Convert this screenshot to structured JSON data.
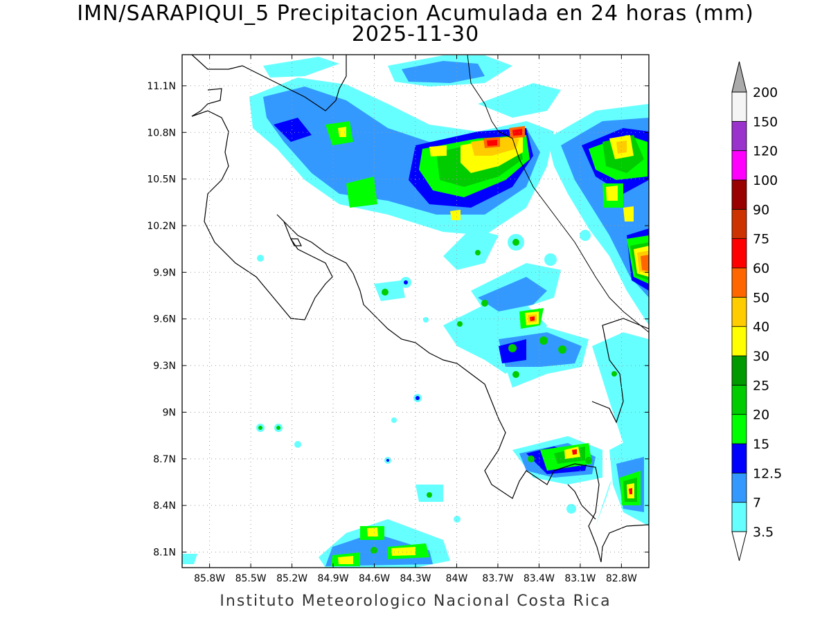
{
  "title": {
    "line1": "IMN/SARAPIQUI_5 Precipitacion Acumulada en 24 horas (mm)",
    "line2": "2025-11-30"
  },
  "map": {
    "lon_range": [
      -86.0,
      -82.6
    ],
    "lat_range": [
      8.0,
      11.3
    ],
    "x_ticks": [
      {
        "lon": -85.8,
        "label": "85.8W"
      },
      {
        "lon": -85.5,
        "label": "85.5W"
      },
      {
        "lon": -85.2,
        "label": "85.2W"
      },
      {
        "lon": -84.9,
        "label": "84.9W"
      },
      {
        "lon": -84.6,
        "label": "84.6W"
      },
      {
        "lon": -84.3,
        "label": "84.3W"
      },
      {
        "lon": -84.0,
        "label": "84W"
      },
      {
        "lon": -83.7,
        "label": "83.7W"
      },
      {
        "lon": -83.4,
        "label": "83.4W"
      },
      {
        "lon": -83.1,
        "label": "83.1W"
      },
      {
        "lon": -82.8,
        "label": "82.8W"
      }
    ],
    "y_ticks": [
      {
        "lat": 11.1,
        "label": "11.1N"
      },
      {
        "lat": 10.8,
        "label": "10.8N"
      },
      {
        "lat": 10.5,
        "label": "10.5N"
      },
      {
        "lat": 10.2,
        "label": "10.2N"
      },
      {
        "lat": 9.9,
        "label": "9.9N"
      },
      {
        "lat": 9.6,
        "label": "9.6N"
      },
      {
        "lat": 9.3,
        "label": "9.3N"
      },
      {
        "lat": 9.0,
        "label": "9N"
      },
      {
        "lat": 8.7,
        "label": "8.7N"
      },
      {
        "lat": 8.4,
        "label": "8.4N"
      },
      {
        "lat": 8.1,
        "label": "8.1N"
      }
    ],
    "grid": true
  },
  "legend": {
    "levels": [
      {
        "label": "3.5",
        "color": "#66ffff"
      },
      {
        "label": "7",
        "color": "#3399ff"
      },
      {
        "label": "12.5",
        "color": "#0000ff"
      },
      {
        "label": "15",
        "color": "#00ff00"
      },
      {
        "label": "20",
        "color": "#00cc00"
      },
      {
        "label": "25",
        "color": "#009900"
      },
      {
        "label": "30",
        "color": "#ffff00"
      },
      {
        "label": "40",
        "color": "#ffcc00"
      },
      {
        "label": "50",
        "color": "#ff6600"
      },
      {
        "label": "60",
        "color": "#ff0000"
      },
      {
        "label": "75",
        "color": "#cc3300"
      },
      {
        "label": "90",
        "color": "#990000"
      },
      {
        "label": "100",
        "color": "#ff00ff"
      },
      {
        "label": "120",
        "color": "#9933cc"
      },
      {
        "label": "150",
        "color": "#f5f5f5"
      },
      {
        "label": "200",
        "color": "#aaaaaa"
      }
    ]
  },
  "credit": "Instituto Meteorologico Nacional Costa Rica"
}
